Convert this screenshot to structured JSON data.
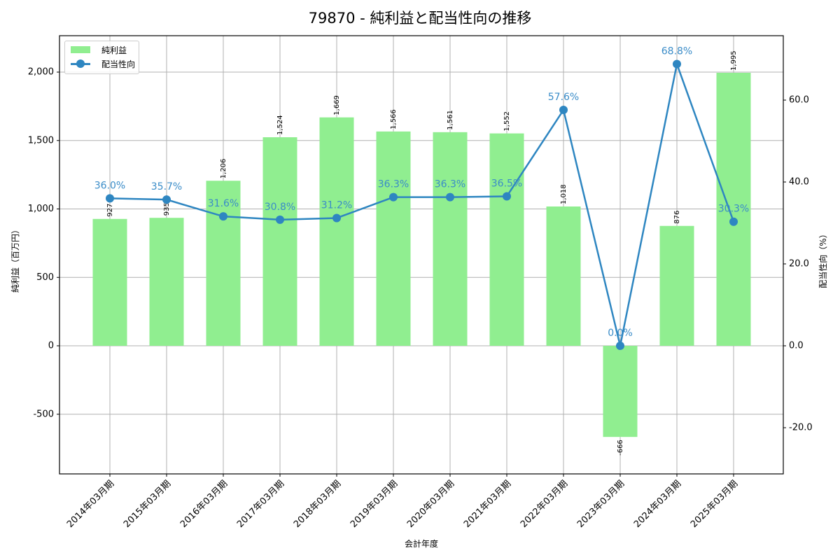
{
  "title": "79870 - 純利益と配当性向の推移",
  "legend": {
    "bar_label": "純利益",
    "line_label": "配当性向"
  },
  "axes": {
    "xlabel": "会計年度",
    "ylabel_left": "純利益（百万円）",
    "ylabel_right": "配当性向（%）",
    "left_ticks": [
      "-500",
      "0",
      "500",
      "1,000",
      "1,500",
      "2,000"
    ],
    "right_ticks": [
      "-20.0",
      "0.0",
      "20.0",
      "40.0",
      "60.0"
    ]
  },
  "colors": {
    "bar": "#90ee90",
    "line": "#2e86c1",
    "grid": "#b0b0b0"
  },
  "chart_data": {
    "type": "bar+line",
    "title": "79870 - 純利益と配当性向の推移",
    "xlabel": "会計年度",
    "categories": [
      "2014年03月期",
      "2015年03月期",
      "2016年03月期",
      "2017年03月期",
      "2018年03月期",
      "2019年03月期",
      "2020年03月期",
      "2021年03月期",
      "2022年03月期",
      "2023年03月期",
      "2024年03月期",
      "2025年03月期"
    ],
    "series": [
      {
        "name": "純利益",
        "type": "bar",
        "axis": "left",
        "ylabel": "純利益（百万円）",
        "values": [
          927,
          935,
          1206,
          1524,
          1669,
          1566,
          1561,
          1552,
          1018,
          -666,
          876,
          1995
        ],
        "labels": [
          "927",
          "935",
          "1,206",
          "1,524",
          "1,669",
          "1,566",
          "1,561",
          "1,552",
          "1,018",
          "-666",
          "876",
          "1,995"
        ]
      },
      {
        "name": "配当性向",
        "type": "line",
        "axis": "right",
        "ylabel": "配当性向（%）",
        "values": [
          36.0,
          35.7,
          31.6,
          30.8,
          31.2,
          36.3,
          36.3,
          36.5,
          57.6,
          0.0,
          68.8,
          30.3
        ],
        "labels": [
          "36.0%",
          "35.7%",
          "31.6%",
          "30.8%",
          "31.2%",
          "36.3%",
          "36.3%",
          "36.5%",
          "57.6%",
          "0.0%",
          "68.8%",
          "30.3%"
        ]
      }
    ],
    "ylim_left": [
      -935,
      2265
    ],
    "ylim_right": [
      -31.4,
      74.8
    ],
    "grid": true,
    "legend_position": "upper left"
  }
}
